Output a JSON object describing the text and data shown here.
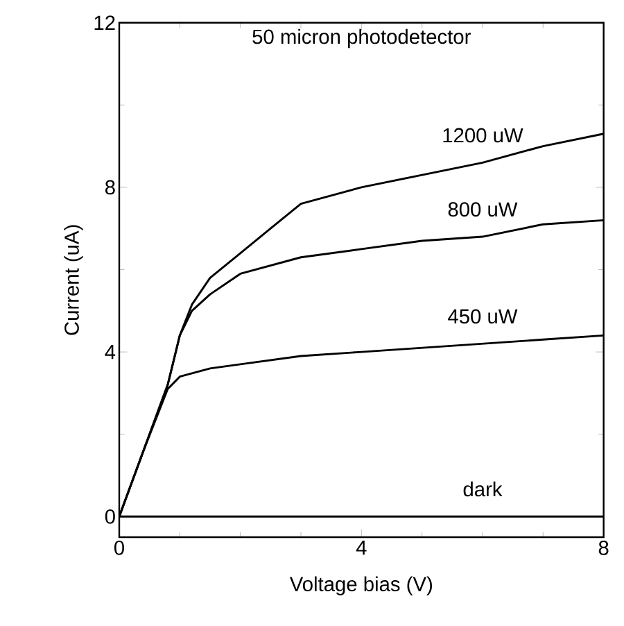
{
  "chart_data": {
    "type": "line",
    "title": "50 micron photodetector",
    "xlabel": "Voltage bias (V)",
    "ylabel": "Current (uA)",
    "xlim": [
      0,
      8
    ],
    "ylim": [
      -0.5,
      12
    ],
    "xticks": [
      0,
      4,
      8
    ],
    "yticks": [
      0,
      4,
      8,
      12
    ],
    "grid": false,
    "legend": false,
    "marker": "none",
    "line_style": "solid",
    "series": [
      {
        "name": "1200 uW",
        "color": "#000000",
        "x": [
          0,
          0.4,
          0.8,
          1,
          1.2,
          1.5,
          2,
          2.5,
          3,
          4,
          5,
          6,
          7,
          8
        ],
        "values": [
          0,
          1.6,
          3.2,
          4.4,
          5.15,
          5.8,
          6.4,
          7.0,
          7.6,
          8.0,
          8.3,
          8.6,
          9.0,
          9.3
        ]
      },
      {
        "name": "800 uW",
        "color": "#000000",
        "x": [
          0,
          0.4,
          0.8,
          1,
          1.2,
          1.5,
          2,
          3,
          4,
          5,
          6,
          7,
          8
        ],
        "values": [
          0,
          1.6,
          3.2,
          4.4,
          5.0,
          5.4,
          5.9,
          6.3,
          6.5,
          6.7,
          6.8,
          7.1,
          7.2
        ]
      },
      {
        "name": "450 uW",
        "color": "#000000",
        "x": [
          0,
          0.4,
          0.8,
          1,
          1.5,
          2,
          3,
          4,
          5,
          6,
          7,
          8
        ],
        "values": [
          0,
          1.6,
          3.1,
          3.4,
          3.6,
          3.7,
          3.9,
          4.0,
          4.1,
          4.2,
          4.3,
          4.4
        ]
      },
      {
        "name": "dark",
        "color": "#000000",
        "x": [
          0,
          2,
          4,
          6,
          8
        ],
        "values": [
          0,
          0,
          0,
          0,
          0
        ]
      }
    ]
  }
}
